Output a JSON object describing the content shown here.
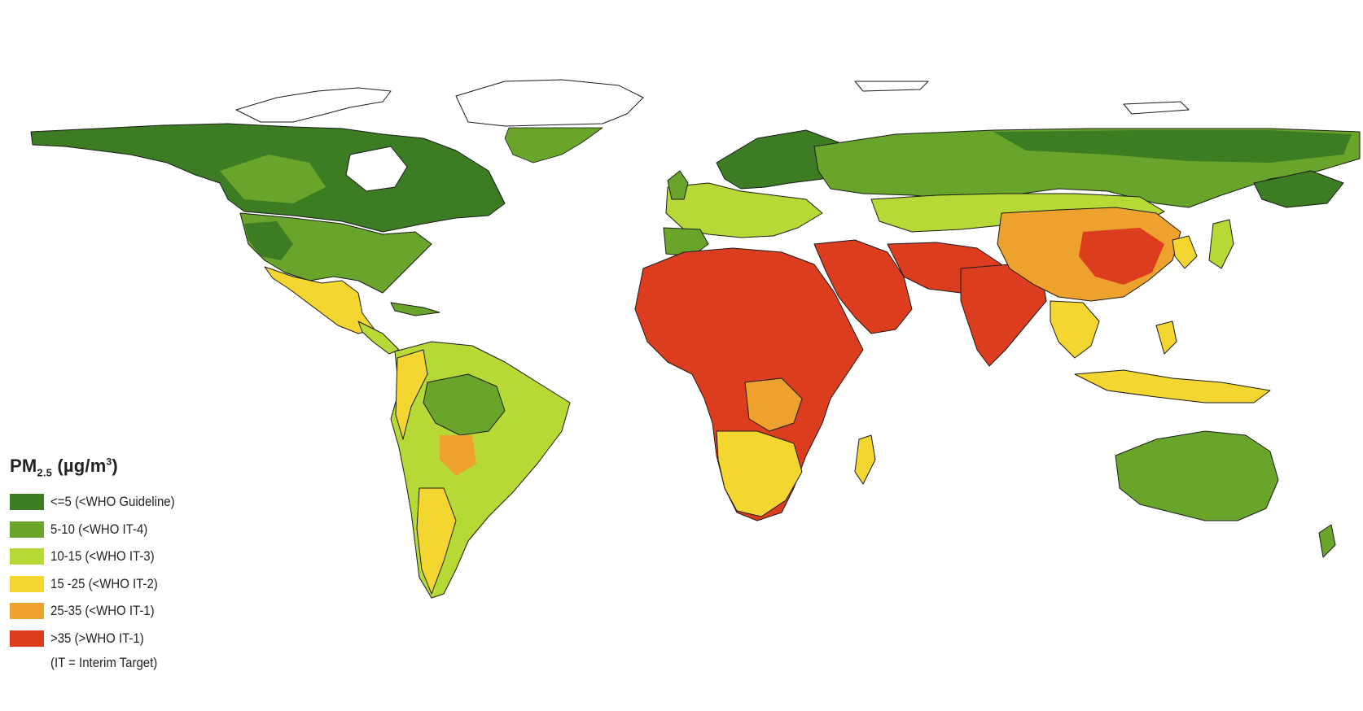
{
  "map": {
    "colors": {
      "lt5": "#3c7d23",
      "5_10": "#6aa52b",
      "10_15": "#b6d935",
      "15_25": "#f4d630",
      "25_35": "#eca22c",
      "gt35": "#dd3d1f",
      "ice": "#ffffff",
      "border": "#1a1a1a"
    }
  },
  "legend": {
    "title_main": "PM",
    "title_sub": "2.5",
    "title_unit_pre": " (µg/m",
    "title_unit_sup": "3",
    "title_unit_post": ")",
    "items": [
      {
        "label": "<=5 (<WHO Guideline)",
        "color": "#3c7d23"
      },
      {
        "label": "5-10 (<WHO IT-4)",
        "color": "#6aa52b"
      },
      {
        "label": "10-15 (<WHO IT-3)",
        "color": "#b6d935"
      },
      {
        "label": "15 -25 (<WHO IT-2)",
        "color": "#f4d630"
      },
      {
        "label": "25-35 (<WHO IT-1)",
        "color": "#eca22c"
      },
      {
        "label": ">35 (>WHO IT-1)",
        "color": "#dd3d1f"
      }
    ],
    "note": "(IT = Interim Target)"
  }
}
